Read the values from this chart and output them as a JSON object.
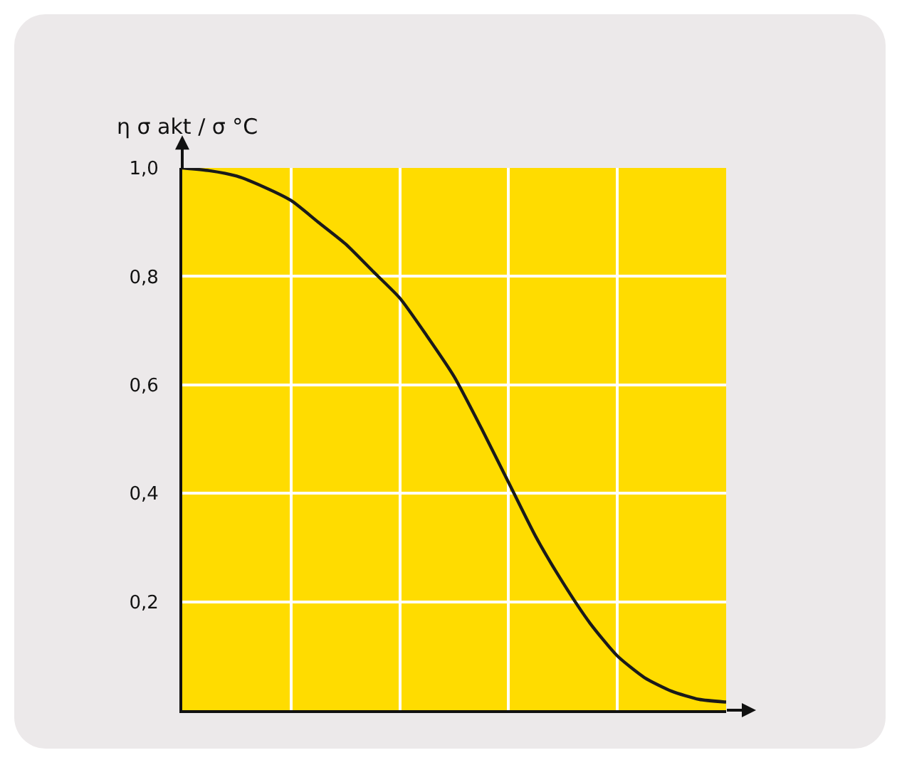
{
  "chart_data": {
    "type": "line",
    "ylabel": "η σ akt / σ °C",
    "categories": [
      null,
      null,
      null,
      null,
      null,
      null,
      null,
      null,
      null,
      null,
      null,
      null,
      null,
      null,
      null,
      null,
      null,
      null,
      null,
      null,
      null
    ],
    "series": [
      {
        "color": "#1a1a1a",
        "values": [
          1.0,
          0.995,
          0.985,
          0.965,
          0.94,
          0.9,
          0.86,
          0.81,
          0.76,
          0.69,
          0.615,
          0.52,
          0.42,
          0.32,
          0.235,
          0.16,
          0.1,
          0.06,
          0.035,
          0.02,
          0.015
        ]
      }
    ],
    "ylim": [
      0,
      1.0
    ],
    "yticks": [
      {
        "value": 0.2,
        "label": "0,2"
      },
      {
        "value": 0.4,
        "label": "0,4"
      },
      {
        "value": 0.6,
        "label": "0,6"
      },
      {
        "value": 0.8,
        "label": "0,8"
      },
      {
        "value": 1.0,
        "label": "1,0"
      }
    ],
    "grid": true,
    "tick_labels": "y",
    "marker": "none",
    "line_style": "solid"
  }
}
